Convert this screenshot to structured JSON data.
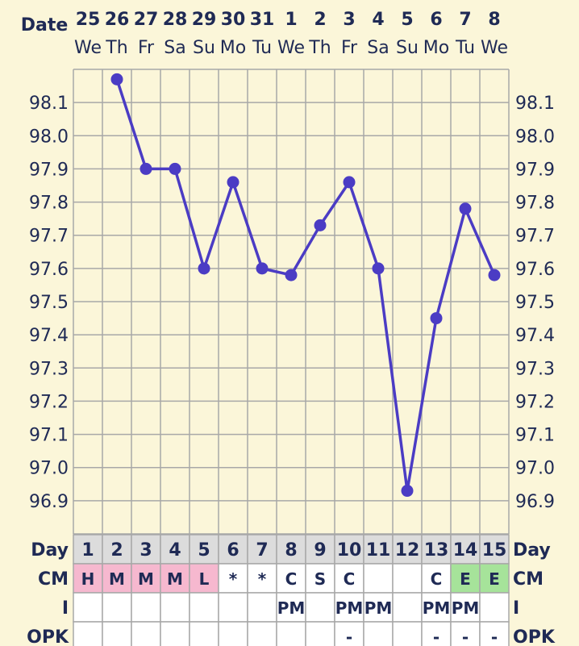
{
  "header": {
    "date_label": "Date",
    "day_label": "Day",
    "cm_label": "CM",
    "i_label": "I",
    "opk_label": "OPK"
  },
  "colors": {
    "line": "#4b3cc4",
    "grid": "#a8a8a8",
    "background": "#fbf6d9",
    "text": "#1f2a55",
    "day_cell": "#dcdcdc",
    "cm_pink": "#f6b8cf",
    "cm_green": "#a6e39a",
    "table_cell": "#ffffff"
  },
  "chart_data": {
    "type": "line",
    "dates": [
      "25",
      "26",
      "27",
      "28",
      "29",
      "30",
      "31",
      "1",
      "2",
      "3",
      "4",
      "5",
      "6",
      "7",
      "8"
    ],
    "weekdays": [
      "We",
      "Th",
      "Fr",
      "Sa",
      "Su",
      "Mo",
      "Tu",
      "We",
      "Th",
      "Fr",
      "Sa",
      "Su",
      "Mo",
      "Tu",
      "We"
    ],
    "cycle_days": [
      "1",
      "2",
      "3",
      "4",
      "5",
      "6",
      "7",
      "8",
      "9",
      "10",
      "11",
      "12",
      "13",
      "14",
      "15"
    ],
    "series": [
      {
        "values": [
          null,
          98.17,
          97.9,
          97.9,
          97.6,
          97.86,
          97.6,
          97.58,
          97.73,
          97.86,
          97.6,
          96.93,
          97.45,
          97.78,
          97.58
        ]
      }
    ],
    "y_ticks": [
      "98.1",
      "98.0",
      "97.9",
      "97.8",
      "97.7",
      "97.6",
      "97.5",
      "97.4",
      "97.3",
      "97.2",
      "97.1",
      "97.0",
      "96.9"
    ],
    "ylim": [
      96.8,
      98.2
    ],
    "grid": true,
    "rows": {
      "cm": [
        "H",
        "M",
        "M",
        "M",
        "L",
        "*",
        "*",
        "C",
        "S",
        "C",
        "",
        "",
        "C",
        "E",
        "E"
      ],
      "i": [
        "",
        "",
        "",
        "",
        "",
        "",
        "",
        "PM",
        "",
        "PM",
        "PM",
        "",
        "PM",
        "PM",
        ""
      ],
      "opk": [
        "",
        "",
        "",
        "",
        "",
        "",
        "",
        "",
        "",
        "-",
        "",
        "",
        "-",
        "-",
        "-"
      ]
    }
  }
}
